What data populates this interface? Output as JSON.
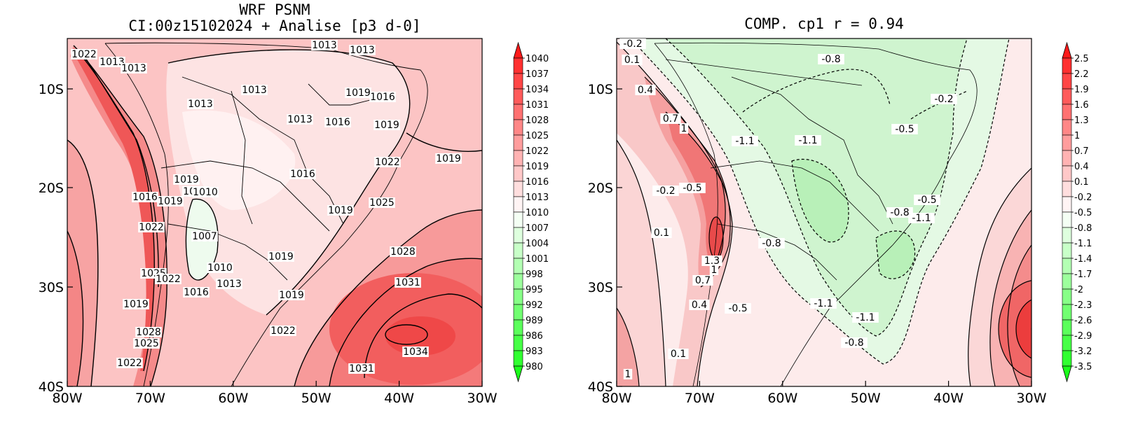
{
  "left_panel": {
    "title_line1": "WRF PSNM",
    "title_line2": "CI:00z15102024 + Analise  [p3 d-0]",
    "x_ticks": [
      "80W",
      "70W",
      "60W",
      "50W",
      "40W",
      "30W"
    ],
    "y_ticks": [
      "10S",
      "20S",
      "30S",
      "40S"
    ],
    "colorbar_labels": [
      "1040",
      "1037",
      "1034",
      "1031",
      "1028",
      "1025",
      "1022",
      "1019",
      "1016",
      "1013",
      "1010",
      "1007",
      "1004",
      "1001",
      "998",
      "995",
      "992",
      "989",
      "986",
      "983",
      "980"
    ],
    "contour_labels": [
      "1022",
      "1013",
      "1013",
      "1013",
      "1013",
      "1013",
      "1013",
      "1013",
      "1016",
      "1016",
      "1019",
      "1019",
      "1022",
      "1019",
      "1016",
      "1019",
      "1016",
      "1016",
      "1019",
      "1022",
      "1007",
      "1010",
      "1010",
      "1013",
      "1016",
      "1025",
      "1028",
      "1025",
      "1022",
      "1019",
      "1019",
      "1022",
      "1028",
      "1031",
      "1034",
      "1031",
      "1025",
      "1022",
      "1019",
      "1019"
    ]
  },
  "right_panel": {
    "title": "COMP. cp1  r =  0.94",
    "x_ticks": [
      "80W",
      "70W",
      "60W",
      "50W",
      "40W",
      "30W"
    ],
    "y_ticks": [
      "10S",
      "20S",
      "30S",
      "40S"
    ],
    "colorbar_labels": [
      "2.5",
      "2.2",
      "1.9",
      "1.6",
      "1.3",
      "1",
      "0.7",
      "0.4",
      "0.1",
      "-0.2",
      "-0.5",
      "-0.8",
      "-1.1",
      "-1.4",
      "-1.7",
      "-2",
      "-2.3",
      "-2.6",
      "-2.9",
      "-3.2",
      "-3.5"
    ],
    "contour_labels": [
      "-0.2",
      "0.1",
      "0.4",
      "0.7",
      "1",
      "-0.8",
      "-1.1",
      "-1.1",
      "-0.2",
      "-0.5",
      "-0.2",
      "-0.5",
      "0.1",
      "1.3",
      "1",
      "0.7",
      "0.4",
      "-0.5",
      "-0.8",
      "-0.8",
      "-1.1",
      "-0.5",
      "-1.1",
      "-1.1",
      "-0.8",
      "0.1",
      "1"
    ]
  },
  "colors": {
    "warm_max": "#ff1a1a",
    "cool_max": "#1aff1a",
    "ocean_high": "#f24747",
    "continent_low": "#fce8e8"
  }
}
